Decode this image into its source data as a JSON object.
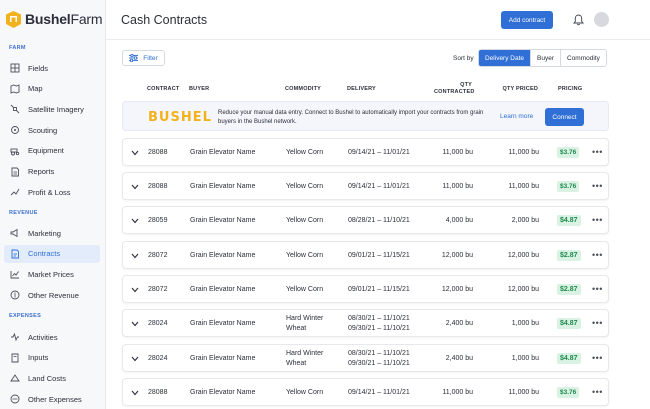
{
  "app": {
    "logo_bold": "Bushel",
    "logo_light": "Farm"
  },
  "sidebar": {
    "sections": [
      {
        "label": "FARM",
        "items": [
          {
            "label": "Fields",
            "icon": "grid-icon"
          },
          {
            "label": "Map",
            "icon": "map-icon"
          },
          {
            "label": "Satellite Imagery",
            "icon": "satellite-icon"
          },
          {
            "label": "Scouting",
            "icon": "scouting-icon"
          },
          {
            "label": "Equipment",
            "icon": "equipment-icon"
          },
          {
            "label": "Reports",
            "icon": "reports-icon"
          },
          {
            "label": "Profit & Loss",
            "icon": "profit-icon"
          }
        ]
      },
      {
        "label": "REVENUE",
        "items": [
          {
            "label": "Marketing",
            "icon": "marketing-icon"
          },
          {
            "label": "Contracts",
            "icon": "contracts-icon",
            "active": true
          },
          {
            "label": "Market Prices",
            "icon": "market-prices-icon"
          },
          {
            "label": "Other Revenue",
            "icon": "other-revenue-icon"
          }
        ]
      },
      {
        "label": "EXPENSES",
        "items": [
          {
            "label": "Activities",
            "icon": "activities-icon"
          },
          {
            "label": "Inputs",
            "icon": "inputs-icon"
          },
          {
            "label": "Land Costs",
            "icon": "land-costs-icon"
          },
          {
            "label": "Other Expenses",
            "icon": "other-expenses-icon"
          }
        ]
      }
    ]
  },
  "header": {
    "title": "Cash Contracts",
    "add_button": "Add contract"
  },
  "toolbar": {
    "filter_label": "Filter",
    "sort_label": "Sort by",
    "sort_options": [
      "Delivery Date",
      "Buyer",
      "Commodity"
    ],
    "sort_active": "Delivery Date"
  },
  "table": {
    "columns": {
      "contract": "CONTRACT",
      "buyer": "BUYER",
      "commodity": "COMMODITY",
      "delivery": "DELIVERY",
      "qty_contracted_1": "QTY",
      "qty_contracted_2": "CONTRACTED",
      "qty_priced": "QTY PRICED",
      "pricing": "PRICING"
    },
    "rows": [
      {
        "contract": "28088",
        "buyer": "Grain Elevator Name",
        "commodity": [
          "Yellow Corn"
        ],
        "delivery": [
          "09/14/21 – 11/01/21"
        ],
        "qty_contracted": "11,000 bu",
        "qty_priced": "11,000 bu",
        "pricing": "$3.76"
      },
      {
        "contract": "28088",
        "buyer": "Grain Elevator Name",
        "commodity": [
          "Yellow Corn"
        ],
        "delivery": [
          "09/14/21 – 11/01/21"
        ],
        "qty_contracted": "11,000 bu",
        "qty_priced": "11,000 bu",
        "pricing": "$3.76"
      },
      {
        "contract": "28059",
        "buyer": "Grain Elevator Name",
        "commodity": [
          "Yellow Corn"
        ],
        "delivery": [
          "08/28/21 – 11/10/21"
        ],
        "qty_contracted": "4,000 bu",
        "qty_priced": "2,000 bu",
        "pricing": "$4.87"
      },
      {
        "contract": "28072",
        "buyer": "Grain Elevator Name",
        "commodity": [
          "Yellow Corn"
        ],
        "delivery": [
          "09/01/21 – 11/15/21"
        ],
        "qty_contracted": "12,000 bu",
        "qty_priced": "12,000 bu",
        "pricing": "$2.87"
      },
      {
        "contract": "28072",
        "buyer": "Grain Elevator Name",
        "commodity": [
          "Yellow Corn"
        ],
        "delivery": [
          "09/01/21 – 11/15/21"
        ],
        "qty_contracted": "12,000 bu",
        "qty_priced": "12,000 bu",
        "pricing": "$2.87"
      },
      {
        "contract": "28024",
        "buyer": "Grain Elevator Name",
        "commodity": [
          "Hard Winter",
          "Wheat"
        ],
        "delivery": [
          "08/30/21 – 11/10/21",
          "09/30/21 – 11/10/21"
        ],
        "qty_contracted": "2,400 bu",
        "qty_priced": "1,000 bu",
        "pricing": "$4.87"
      },
      {
        "contract": "28024",
        "buyer": "Grain Elevator Name",
        "commodity": [
          "Hard Winter",
          "Wheat"
        ],
        "delivery": [
          "08/30/21 – 11/10/21",
          "09/30/21 – 11/10/21"
        ],
        "qty_contracted": "2,400 bu",
        "qty_priced": "1,000 bu",
        "pricing": "$4.87"
      },
      {
        "contract": "28088",
        "buyer": "Grain Elevator Name",
        "commodity": [
          "Yellow Corn"
        ],
        "delivery": [
          "09/14/21 – 11/01/21"
        ],
        "qty_contracted": "11,000 bu",
        "qty_priced": "11,000 bu",
        "pricing": "$3.76"
      }
    ]
  },
  "promo": {
    "logo": "BUSHEL",
    "text": "Reduce your manual data entry. Connect to Bushel to automatically import your contracts from grain buyers in the Bushel network.",
    "learn_more": "Learn more",
    "connect": "Connect"
  },
  "colors": {
    "accent": "#2f6fd6",
    "brand_yellow": "#f2b21b",
    "price_bg": "#d9f2e4",
    "price_text": "#1e8a4c"
  }
}
